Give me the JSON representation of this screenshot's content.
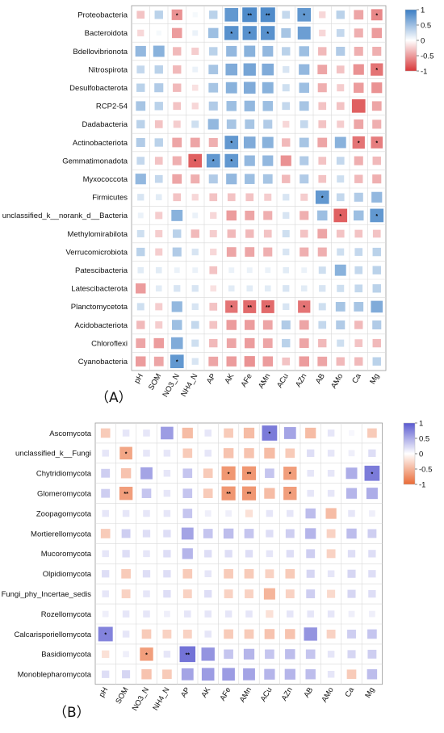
{
  "chart_data": [
    {
      "type": "heatmap",
      "panel_label": "（A）",
      "rows": [
        "Proteobacteria",
        "Bacteroidota",
        "Bdellovibrionota",
        "Nitrospirota",
        "Desulfobacterota",
        "RCP2-54",
        "Dadabacteria",
        "Actinobacteriota",
        "Gemmatimonadota",
        "Myxococcota",
        "Firmicutes",
        "unclassified_k__norank_d__Bacteria",
        "Methylomirabilota",
        "Verrucomicrobiota",
        "Patescibacteria",
        "Latescibacterota",
        "Planctomycetota",
        "Acidobacteriota",
        "Chloroflexi",
        "Cyanobacteria"
      ],
      "columns": [
        "pH",
        "SOM",
        "NO3_N",
        "NH4_N",
        "AP",
        "AK",
        "AFe",
        "AMn",
        "ACu",
        "AZn",
        "AB",
        "AMo",
        "Ca",
        "Mg"
      ],
      "values": [
        [
          -0.3,
          0.35,
          -0.55,
          0.05,
          0.35,
          0.8,
          0.9,
          0.9,
          0.3,
          0.8,
          -0.2,
          0.35,
          -0.45,
          -0.6
        ],
        [
          -0.2,
          0.05,
          -0.5,
          0.1,
          0.5,
          0.85,
          0.85,
          0.85,
          0.45,
          0.75,
          -0.2,
          0.3,
          -0.4,
          -0.5
        ],
        [
          0.55,
          0.6,
          -0.35,
          -0.25,
          0.35,
          0.55,
          0.6,
          0.55,
          0.35,
          0.5,
          -0.35,
          0.4,
          -0.4,
          -0.4
        ],
        [
          0.3,
          0.35,
          -0.35,
          0.1,
          0.45,
          0.65,
          0.7,
          0.65,
          0.2,
          0.55,
          -0.45,
          -0.3,
          -0.55,
          -0.7
        ],
        [
          0.35,
          0.4,
          -0.35,
          -0.15,
          0.45,
          0.6,
          0.65,
          0.6,
          0.25,
          0.5,
          -0.4,
          -0.25,
          -0.5,
          -0.55
        ],
        [
          0.45,
          0.35,
          -0.3,
          -0.2,
          0.4,
          0.5,
          0.55,
          0.5,
          0.3,
          0.45,
          -0.3,
          -0.3,
          -0.8,
          -0.45
        ],
        [
          0.35,
          -0.3,
          -0.25,
          0.25,
          0.55,
          0.45,
          0.45,
          0.4,
          -0.2,
          0.3,
          -0.3,
          -0.25,
          -0.45,
          -0.4
        ],
        [
          0.4,
          0.35,
          -0.45,
          -0.45,
          -0.4,
          0.8,
          0.65,
          0.6,
          -0.35,
          0.45,
          -0.45,
          0.6,
          -0.7,
          -0.65
        ],
        [
          0.3,
          -0.3,
          -0.4,
          -0.8,
          0.8,
          0.8,
          0.55,
          0.55,
          -0.55,
          0.4,
          -0.3,
          0.3,
          -0.4,
          -0.35
        ],
        [
          0.55,
          0.3,
          -0.45,
          -0.4,
          0.4,
          0.55,
          0.5,
          0.45,
          -0.35,
          0.4,
          -0.3,
          0.25,
          -0.35,
          -0.4
        ],
        [
          0.2,
          0.15,
          -0.3,
          -0.2,
          -0.3,
          -0.3,
          -0.3,
          -0.25,
          0.2,
          -0.25,
          0.8,
          0.3,
          0.4,
          0.55
        ],
        [
          0.1,
          -0.25,
          0.6,
          0.1,
          -0.2,
          -0.5,
          -0.45,
          -0.4,
          0.2,
          -0.4,
          0.5,
          -0.8,
          0.5,
          0.8
        ],
        [
          0.25,
          -0.25,
          0.35,
          -0.35,
          -0.25,
          -0.35,
          -0.35,
          -0.3,
          0.25,
          -0.3,
          -0.45,
          -0.3,
          -0.3,
          -0.3
        ],
        [
          0.35,
          -0.25,
          0.4,
          0.2,
          -0.2,
          -0.45,
          -0.45,
          -0.4,
          0.2,
          -0.4,
          -0.4,
          0.25,
          0.3,
          0.35
        ],
        [
          0.15,
          0.15,
          0.1,
          0.1,
          -0.3,
          0.1,
          0.1,
          0.1,
          0.15,
          0.1,
          0.25,
          0.6,
          0.3,
          0.35
        ],
        [
          -0.5,
          0.15,
          0.2,
          0.2,
          -0.15,
          0.15,
          0.15,
          0.15,
          0.2,
          0.15,
          0.2,
          0.25,
          0.3,
          0.35
        ],
        [
          0.25,
          -0.25,
          0.55,
          0.2,
          -0.3,
          -0.7,
          -0.75,
          -0.75,
          0.2,
          -0.7,
          0.25,
          0.45,
          0.45,
          0.65
        ],
        [
          -0.35,
          -0.25,
          0.5,
          0.3,
          -0.3,
          -0.5,
          -0.5,
          -0.45,
          0.4,
          -0.45,
          0.3,
          0.4,
          -0.35,
          0.4
        ],
        [
          -0.45,
          -0.5,
          0.65,
          0.25,
          -0.35,
          -0.45,
          -0.5,
          -0.45,
          0.35,
          -0.45,
          -0.35,
          0.25,
          -0.3,
          -0.35
        ],
        [
          -0.5,
          -0.45,
          0.8,
          0.2,
          -0.45,
          -0.5,
          -0.55,
          -0.5,
          -0.3,
          -0.5,
          -0.45,
          -0.35,
          -0.35,
          0.35
        ]
      ],
      "significance": [
        [
          "",
          "",
          "*",
          "",
          "",
          "",
          "**",
          "**",
          "",
          "*",
          "",
          "",
          "",
          "*"
        ],
        [
          "",
          "",
          "",
          "",
          "",
          "*",
          "*",
          "*",
          "",
          "",
          "",
          "",
          "",
          ""
        ],
        [
          "",
          "",
          "",
          "",
          "",
          "",
          "",
          "",
          "",
          "",
          "",
          "",
          "",
          ""
        ],
        [
          "",
          "",
          "",
          "",
          "",
          "",
          "",
          "",
          "",
          "",
          "",
          "",
          "",
          "*"
        ],
        [
          "",
          "",
          "",
          "",
          "",
          "",
          "",
          "",
          "",
          "",
          "",
          "",
          "",
          ""
        ],
        [
          "",
          "",
          "",
          "",
          "",
          "",
          "",
          "",
          "",
          "",
          "",
          "",
          "",
          ""
        ],
        [
          "",
          "",
          "",
          "",
          "",
          "",
          "",
          "",
          "",
          "",
          "",
          "",
          "",
          ""
        ],
        [
          "",
          "",
          "",
          "",
          "",
          "*",
          "",
          "",
          "",
          "",
          "",
          "",
          "*",
          "*"
        ],
        [
          "",
          "",
          "",
          "*",
          "*",
          "*",
          "",
          "",
          "",
          "",
          "",
          "",
          "",
          ""
        ],
        [
          "",
          "",
          "",
          "",
          "",
          "",
          "",
          "",
          "",
          "",
          "",
          "",
          "",
          ""
        ],
        [
          "",
          "",
          "",
          "",
          "",
          "",
          "",
          "",
          "",
          "",
          "*",
          "",
          "",
          ""
        ],
        [
          "",
          "",
          "",
          "",
          "",
          "",
          "",
          "",
          "",
          "",
          "",
          "*",
          "",
          "*"
        ],
        [
          "",
          "",
          "",
          "",
          "",
          "",
          "",
          "",
          "",
          "",
          "",
          "",
          "",
          ""
        ],
        [
          "",
          "",
          "",
          "",
          "",
          "",
          "",
          "",
          "",
          "",
          "",
          "",
          "",
          ""
        ],
        [
          "",
          "",
          "",
          "",
          "",
          "",
          "",
          "",
          "",
          "",
          "",
          "",
          "",
          ""
        ],
        [
          "",
          "",
          "",
          "",
          "",
          "",
          "",
          "",
          "",
          "",
          "",
          "",
          "",
          ""
        ],
        [
          "",
          "",
          "",
          "",
          "",
          "*",
          "**",
          "**",
          "",
          "*",
          "",
          "",
          "",
          ""
        ],
        [
          "",
          "",
          "",
          "",
          "",
          "",
          "",
          "",
          "",
          "",
          "",
          "",
          "",
          ""
        ],
        [
          "",
          "",
          "",
          "",
          "",
          "",
          "",
          "",
          "",
          "",
          "",
          "",
          "",
          ""
        ],
        [
          "",
          "",
          "*",
          "",
          "",
          "",
          "",
          "",
          "",
          "",
          "",
          "",
          "",
          ""
        ]
      ],
      "colorbar": {
        "min": -1,
        "max": 1,
        "ticks": [
          "1",
          "0.5",
          "0",
          "-0.5",
          "-1"
        ],
        "high_color": "#3b7ec4",
        "mid_color": "#ffffff",
        "low_color": "#d8383a"
      }
    },
    {
      "type": "heatmap",
      "panel_label": "（B）",
      "rows": [
        "Ascomycota",
        "unclassified_k__Fungi",
        "Chytridiomycota",
        "Glomeromycota",
        "Zoopagomycota",
        "Mortierellomycota",
        "Mucoromycota",
        "Olpidiomycota",
        "Fungi_phy_Incertae_sedis",
        "Rozellomycota",
        "Calcarisporiellomycota",
        "Basidiomycota",
        "Monoblepharomycota"
      ],
      "columns": [
        "pH",
        "SOM",
        "NO3_N",
        "NH4_N",
        "AP",
        "AK",
        "AFe",
        "AMn",
        "ACu",
        "AZn",
        "AB",
        "AMo",
        "Ca",
        "Mg"
      ],
      "values": [
        [
          -0.35,
          0.15,
          0.15,
          0.6,
          -0.45,
          0.15,
          -0.35,
          -0.45,
          0.8,
          0.55,
          -0.45,
          0.15,
          0.05,
          -0.35
        ],
        [
          0.15,
          -0.6,
          0.15,
          0.15,
          -0.35,
          0.15,
          -0.4,
          -0.4,
          -0.45,
          -0.35,
          0.2,
          0.15,
          0.1,
          0.2
        ],
        [
          0.3,
          -0.4,
          0.55,
          0.15,
          0.35,
          -0.35,
          -0.7,
          -0.7,
          0.35,
          -0.65,
          0.15,
          0.15,
          0.5,
          0.8
        ],
        [
          0.3,
          -0.65,
          0.35,
          0.15,
          0.35,
          -0.35,
          -0.7,
          -0.7,
          -0.45,
          -0.65,
          0.15,
          0.15,
          0.45,
          0.5
        ],
        [
          0.15,
          0.15,
          0.15,
          0.15,
          0.35,
          0.1,
          0.1,
          -0.2,
          0.15,
          0.15,
          0.4,
          -0.45,
          0.15,
          0.1
        ],
        [
          -0.35,
          0.3,
          0.2,
          0.2,
          0.55,
          0.35,
          0.4,
          0.35,
          0.2,
          0.3,
          0.45,
          -0.3,
          0.4,
          0.3
        ],
        [
          0.15,
          0.2,
          0.15,
          0.2,
          0.45,
          0.2,
          0.2,
          0.2,
          0.15,
          0.2,
          0.3,
          -0.3,
          0.2,
          0.2
        ],
        [
          0.2,
          -0.35,
          0.2,
          0.2,
          -0.35,
          0.15,
          -0.35,
          -0.35,
          -0.3,
          -0.35,
          0.25,
          0.15,
          0.25,
          0.2
        ],
        [
          0.15,
          -0.3,
          0.15,
          0.2,
          -0.3,
          0.2,
          -0.3,
          -0.3,
          -0.5,
          -0.3,
          0.3,
          -0.25,
          0.25,
          0.2
        ],
        [
          0.1,
          0.15,
          0.15,
          0.1,
          0.15,
          0.15,
          0.15,
          0.15,
          -0.2,
          0.15,
          0.15,
          0.15,
          0.1,
          0.1
        ],
        [
          0.75,
          0.15,
          -0.35,
          -0.3,
          -0.3,
          0.15,
          -0.35,
          -0.35,
          -0.4,
          -0.4,
          0.65,
          -0.3,
          0.3,
          0.35
        ],
        [
          -0.2,
          0.1,
          -0.65,
          0.15,
          0.85,
          0.65,
          0.35,
          0.45,
          0.35,
          0.4,
          0.35,
          0.15,
          0.25,
          0.3
        ],
        [
          0.2,
          0.25,
          -0.4,
          -0.35,
          0.55,
          0.6,
          0.6,
          0.55,
          0.45,
          0.45,
          0.4,
          0.15,
          -0.35,
          0.4
        ]
      ],
      "significance": [
        [
          "",
          "",
          "",
          "",
          "",
          "",
          "",
          "",
          "*",
          "",
          "",
          "",
          "",
          ""
        ],
        [
          "",
          "*",
          "",
          "",
          "",
          "",
          "",
          "",
          "",
          "",
          "",
          "",
          "",
          ""
        ],
        [
          "",
          "",
          "",
          "",
          "",
          "",
          "*",
          "**",
          "",
          "*",
          "",
          "",
          "",
          "*"
        ],
        [
          "",
          "**",
          "",
          "",
          "",
          "",
          "**",
          "**",
          "",
          "*",
          "",
          "",
          "",
          ""
        ],
        [
          "",
          "",
          "",
          "",
          "",
          "",
          "",
          "",
          "",
          "",
          "",
          "",
          "",
          ""
        ],
        [
          "",
          "",
          "",
          "",
          "",
          "",
          "",
          "",
          "",
          "",
          "",
          "",
          "",
          ""
        ],
        [
          "",
          "",
          "",
          "",
          "",
          "",
          "",
          "",
          "",
          "",
          "",
          "",
          "",
          ""
        ],
        [
          "",
          "",
          "",
          "",
          "",
          "",
          "",
          "",
          "",
          "",
          "",
          "",
          "",
          ""
        ],
        [
          "",
          "",
          "",
          "",
          "",
          "",
          "",
          "",
          "",
          "",
          "",
          "",
          "",
          ""
        ],
        [
          "",
          "",
          "",
          "",
          "",
          "",
          "",
          "",
          "",
          "",
          "",
          "",
          "",
          ""
        ],
        [
          "*",
          "",
          "",
          "",
          "",
          "",
          "",
          "",
          "",
          "",
          "",
          "",
          "",
          ""
        ],
        [
          "",
          "",
          "*",
          "",
          "**",
          "",
          "",
          "",
          "",
          "",
          "",
          "",
          "",
          ""
        ],
        [
          "",
          "",
          "",
          "",
          "",
          "",
          "",
          "",
          "",
          "",
          "",
          "",
          "",
          ""
        ]
      ],
      "colorbar": {
        "min": -1,
        "max": 1,
        "ticks": [
          "1",
          "0.5",
          "0",
          "-0.5",
          "-1"
        ],
        "high_color": "#5a5ad0",
        "mid_color": "#ffffff",
        "low_color": "#ea6a36"
      }
    }
  ]
}
